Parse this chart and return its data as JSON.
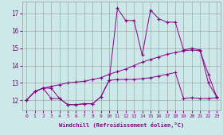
{
  "xlabel": "Windchill (Refroidissement éolien,°C)",
  "background_color": "#cce8e8",
  "grid_color": "#999999",
  "line_color": "#880088",
  "x": [
    0,
    1,
    2,
    3,
    4,
    5,
    6,
    7,
    8,
    9,
    10,
    11,
    12,
    13,
    14,
    15,
    16,
    17,
    18,
    19,
    20,
    21,
    22,
    23
  ],
  "line_spike": [
    12.0,
    12.5,
    12.7,
    12.7,
    12.1,
    11.75,
    11.75,
    11.8,
    11.8,
    12.2,
    13.15,
    17.3,
    16.6,
    16.6,
    14.6,
    17.2,
    16.7,
    16.5,
    16.5,
    14.9,
    15.0,
    14.9,
    13.0,
    12.2
  ],
  "line_gradual": [
    12.0,
    12.5,
    12.7,
    12.8,
    12.9,
    13.0,
    13.05,
    13.1,
    13.2,
    13.3,
    13.5,
    13.65,
    13.8,
    14.0,
    14.2,
    14.35,
    14.5,
    14.65,
    14.75,
    14.85,
    14.9,
    14.85,
    13.5,
    12.2
  ],
  "line_flat": [
    12.0,
    12.5,
    12.7,
    12.1,
    12.1,
    11.75,
    11.75,
    11.8,
    11.8,
    12.2,
    13.15,
    13.2,
    13.2,
    13.2,
    13.25,
    13.3,
    13.4,
    13.5,
    13.6,
    12.1,
    12.15,
    12.1,
    12.1,
    12.15
  ],
  "xlim": [
    -0.5,
    23.5
  ],
  "ylim": [
    11.4,
    17.7
  ],
  "yticks": [
    12,
    13,
    14,
    15,
    16,
    17
  ],
  "xticks": [
    0,
    1,
    2,
    3,
    4,
    5,
    6,
    7,
    8,
    9,
    10,
    11,
    12,
    13,
    14,
    15,
    16,
    17,
    18,
    19,
    20,
    21,
    22,
    23
  ]
}
